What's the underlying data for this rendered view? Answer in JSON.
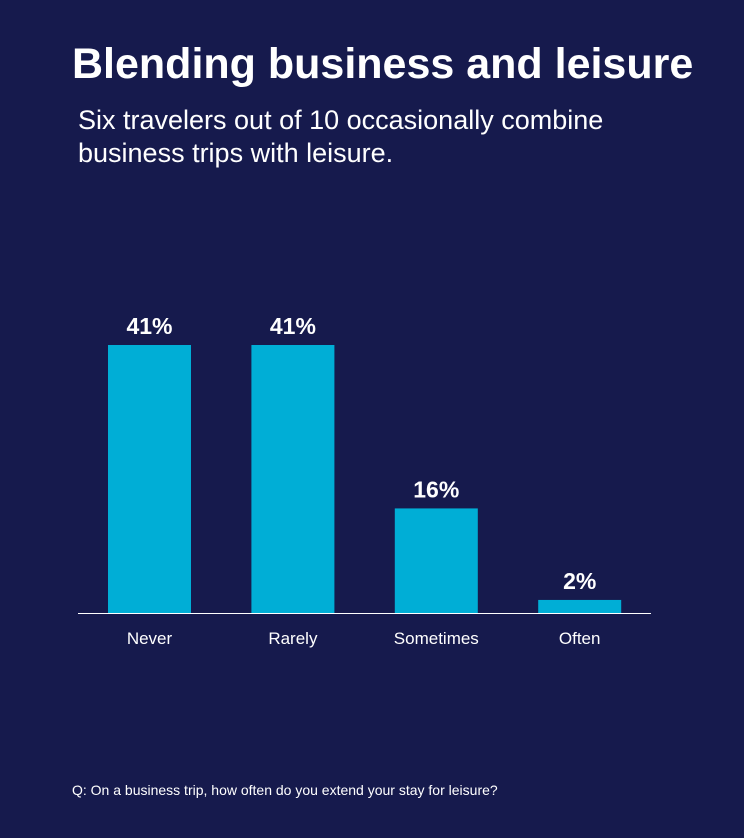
{
  "chart_data": {
    "type": "bar",
    "title": "Blending business and leisure",
    "subtitle": "Six travelers out of 10 occasionally combine business trips with leisure.",
    "categories": [
      "Never",
      "Rarely",
      "Sometimes",
      "Often"
    ],
    "values": [
      41,
      41,
      16,
      2
    ],
    "data_labels": [
      "41%",
      "41%",
      "16%",
      "2%"
    ],
    "xlabel": "",
    "ylabel": "",
    "ylim": [
      0,
      45
    ],
    "grid": false,
    "bar_color": "#00aed6",
    "background": "#161a4d",
    "footnote": "Q: On a business trip, how often do you extend your stay for leisure?"
  }
}
